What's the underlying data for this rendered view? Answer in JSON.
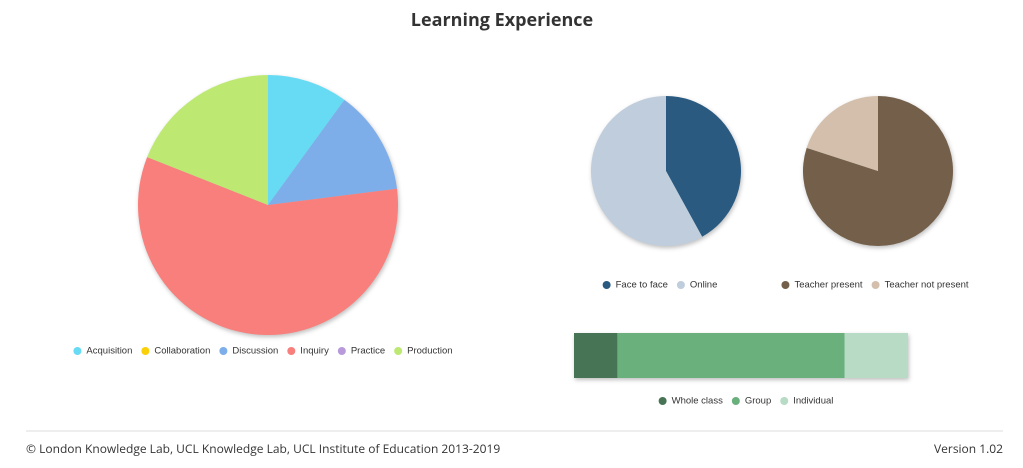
{
  "header": {
    "title": "Learning Experience"
  },
  "footer": {
    "copyright": "© London Knowledge Lab, UCL Knowledge Lab, UCL Institute of Education 2013-2019",
    "version": "Version 1.02"
  },
  "chart_data": [
    {
      "type": "pie",
      "categories": [
        "Acquisition",
        "Collaboration",
        "Discussion",
        "Inquiry",
        "Practice",
        "Production"
      ],
      "values": [
        10,
        0,
        13,
        58,
        0,
        19
      ],
      "colors": [
        "#66dbf3",
        "#f9d009",
        "#7daeea",
        "#f87f7c",
        "#b89adb",
        "#bde973"
      ]
    },
    {
      "type": "pie",
      "categories": [
        "Face to face",
        "Online"
      ],
      "values": [
        42,
        58
      ],
      "colors": [
        "#2a5a80",
        "#bfcddc"
      ]
    },
    {
      "type": "pie",
      "categories": [
        "Teacher present",
        "Teacher not present"
      ],
      "values": [
        80,
        20
      ],
      "colors": [
        "#735f4a",
        "#d3bfac"
      ]
    },
    {
      "type": "bar",
      "orientation": "horizontal",
      "stacked": true,
      "series": [
        {
          "name": "Whole class",
          "color": "#467455",
          "values": [
            13
          ]
        },
        {
          "name": "Group",
          "color": "#6ab07d",
          "values": [
            68
          ]
        },
        {
          "name": "Individual",
          "color": "#b7dbc4",
          "values": [
            19
          ]
        }
      ]
    }
  ]
}
